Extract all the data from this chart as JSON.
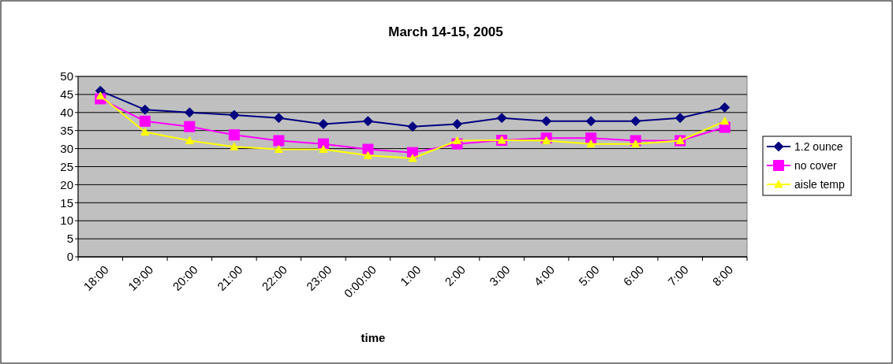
{
  "chart_data": {
    "type": "line",
    "title": "March 14-15, 2005",
    "xlabel": "time",
    "categories": [
      "18:00",
      "19:00",
      "20:00",
      "21:00",
      "22:00",
      "23:00",
      "0:00:00",
      "1:00",
      "2:00",
      "3:00",
      "4:00",
      "5:00",
      "6:00",
      "7:00",
      "8:00"
    ],
    "ylim": [
      0,
      50
    ],
    "yticks": [
      0,
      5,
      10,
      15,
      20,
      25,
      30,
      35,
      40,
      45,
      50
    ],
    "grid": "y",
    "legend": "right",
    "line_style": "solid",
    "series": [
      {
        "name": "1.2 ounce",
        "color": "#000080",
        "marker": "diamond",
        "values": [
          46,
          40.8,
          40,
          39.3,
          38.5,
          36.8,
          37.6,
          36.1,
          36.8,
          38.5,
          37.6,
          37.6,
          37.6,
          38.5,
          41.4
        ]
      },
      {
        "name": "no cover",
        "color": "#ff00ff",
        "marker": "square",
        "values": [
          43.8,
          37.6,
          36.1,
          33.8,
          32.2,
          31.3,
          29.8,
          28.9,
          31.3,
          32.3,
          32.9,
          32.9,
          32.2,
          32.2,
          35.9
        ]
      },
      {
        "name": "aisle temp",
        "color": "#ffff00",
        "marker": "triangle",
        "values": [
          44.6,
          34.6,
          32.2,
          30.5,
          29.8,
          29.8,
          28.1,
          27.3,
          32.2,
          32.3,
          32.2,
          31.3,
          31.3,
          32.2,
          37.6
        ]
      }
    ]
  }
}
